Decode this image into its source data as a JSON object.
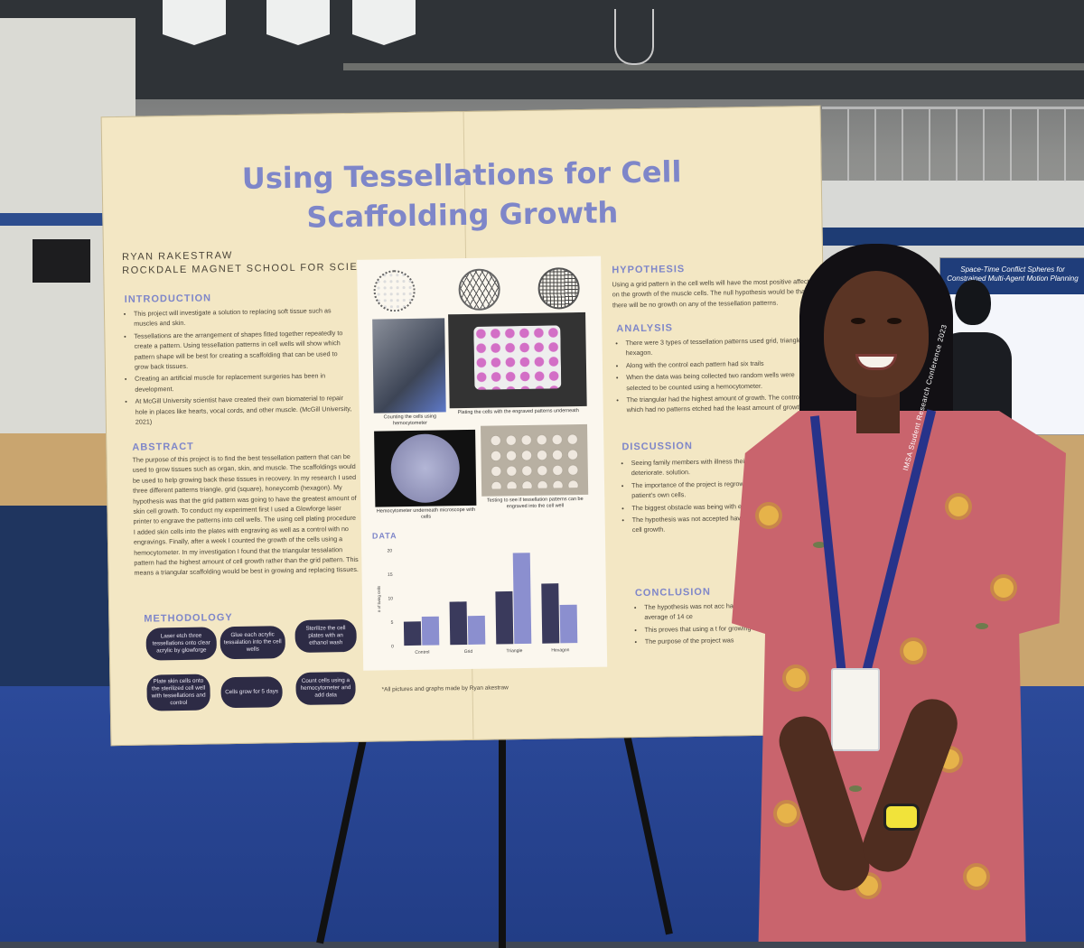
{
  "poster": {
    "title": "Using Tessellations for Cell Scaffolding Growth",
    "author": "RYAN RAKESTRAW",
    "school": "ROCKDALE MAGNET SCHOOL FOR SCIENCE AND TECHNOLOGY",
    "sections": {
      "introduction": "INTRODUCTION",
      "abstract": "ABSTRACT",
      "methodology": "METHODOLOGY",
      "hypothesis": "HYPOTHESIS",
      "analysis": "ANALYSIS",
      "discussion": "DISCUSSION",
      "conclusion": "CONCLUSION",
      "data": "DATA"
    },
    "intro_items": [
      "This project will investigate a solution to replacing soft tissue such as muscles and skin.",
      "Tessellations are the arrangement of shapes fitted together repeatedly to create a pattern. Using tessellation patterns in cell wells will show which pattern shape will be best for creating a scaffolding that can be used to grow back tissues.",
      "Creating an artificial muscle for replacement surgeries has been in development.",
      "At McGill University scientist have created their own biomaterial to repair hole in places like hearts, vocal cords, and other muscle. (McGill University, 2021)"
    ],
    "abstract_text": "The purpose of this project is to find the best tessellation pattern that can be used to grow tissues such as organ, skin, and muscle. The scaffoldings would be used to help growing back these tissues in recovery. In my research I used three different patterns triangle, grid (square), honeycomb (hexagon). My hypothesis was that the grid pattern was going to have the greatest amount of skin cell growth. To conduct my experiment first I used a Glowforge laser printer to engrave the patterns into cell wells. The using cell plating procedure I added skin cells into the plates with engraving as well as a control with no engravings. Finally, after a week I counted the growth of the cells using a hemocytometer. In my investigation I found that the triangular tessalation pattern had the highest amount of cell growth rather than the grid pattern. This means a triangular scaffolding would be best in growing and replacing tissues.",
    "method_steps": [
      "Laser etch three tessellations onto clear acrylic by glowforge",
      "Glue each acrylic tessalation into the cell wells",
      "Sterilize the cell plates with an ethanol wash",
      "Plate skin cells onto the sterilized cell well with tessellations and control",
      "Cells grow for 5 days",
      "Count cells using a hemocytometer and add data"
    ],
    "hypothesis_text": "Using a grid pattern in the cell wells will have the most positive affect on the growth of the muscle cells. The null hypothesis would be that there will be no growth on any of the tessellation patterns.",
    "analysis_items": [
      "There were 3 types of tessellation patterns used grid, triangle, and hexagon.",
      "Along with the control each pattern had six trails",
      "When the data was being collected two random wells were selected to be counted using a hemocytometer.",
      "The triangular had the highest amount of growth. The control, which had no patterns etched had the least amount of growth."
    ],
    "discussion_items": [
      "Seeing family members with illness their body tissues to deteriorate. solution.",
      "The importance of the project is regrowing body tissue such as patient's own cells.",
      "The biggest obstacle was being with each being the correct size",
      "The hypothesis was not accepted having the most growth the tri cell growth."
    ],
    "conclusion_items": [
      "The hypothesis was not acc having the most growth th with an average of 14 ce",
      "This proves that using a t for growing back tissues s",
      "The purpose of the project was"
    ],
    "captions": [
      "Counting the cells using hemocytometer",
      "Plating the cells with the engraved patterns underneath",
      "Hemocytometer underneath microscope with cells",
      "Testing to see if tessellation patterns can be engraved into the cell well"
    ],
    "credit": "*All pictures and graphs made by Ryan akestraw"
  },
  "chart_data": {
    "type": "bar",
    "categories": [
      "Control",
      "Grid",
      "Triangle",
      "Hexagon"
    ],
    "series": [
      {
        "values": [
          5,
          9,
          11,
          12.5
        ]
      },
      {
        "values": [
          6,
          6,
          19,
          8
        ]
      }
    ],
    "ylabel": "# of living cells",
    "ylim": [
      0,
      20
    ],
    "yticks": [
      0,
      5,
      10,
      15,
      20
    ],
    "colors": [
      "#3a3a5c",
      "#8b8fcf"
    ]
  },
  "second_poster": {
    "title": "Space-Time Conflict Spheres for Constrained Multi-Agent Motion Planning"
  },
  "lanyard": {
    "text": "IMSA Student Research Conference 2023"
  },
  "colors": {
    "poster_bg": "#f3e7c4",
    "title": "#7e86c9",
    "dress": "#c9646d"
  }
}
